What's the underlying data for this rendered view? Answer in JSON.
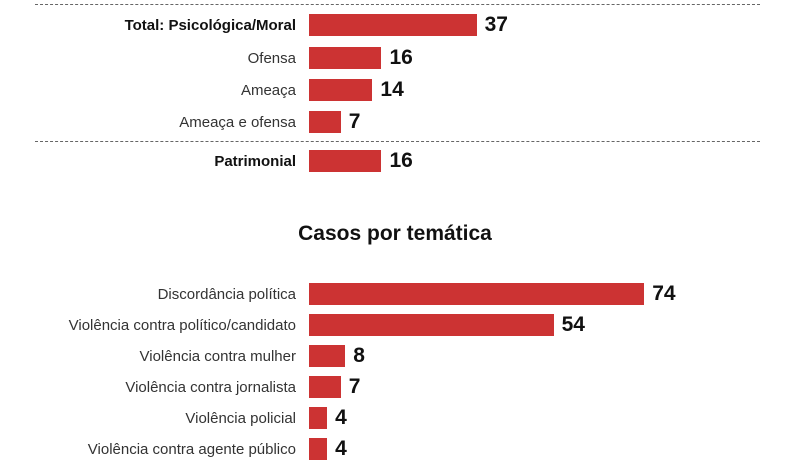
{
  "chart_data": [
    {
      "type": "bar",
      "orientation": "horizontal",
      "title": "",
      "categories": [
        "Total: Psicológica/Moral",
        "Ofensa",
        "Ameaça",
        "Ameaça e ofensa",
        "Patrimonial"
      ],
      "emphasized": [
        true,
        false,
        false,
        false,
        true
      ],
      "values": [
        37,
        16,
        14,
        7,
        16
      ],
      "color": "#cc3333",
      "grid": false
    },
    {
      "type": "bar",
      "orientation": "horizontal",
      "title": "Casos por temática",
      "categories": [
        "Discordância política",
        "Violência contra político/candidato",
        "Violência contra mulher",
        "Violência contra jornalista",
        "Violência policial",
        "Violência contra agente público"
      ],
      "values": [
        74,
        54,
        8,
        7,
        4,
        4
      ],
      "color": "#cc3333",
      "grid": false
    }
  ]
}
